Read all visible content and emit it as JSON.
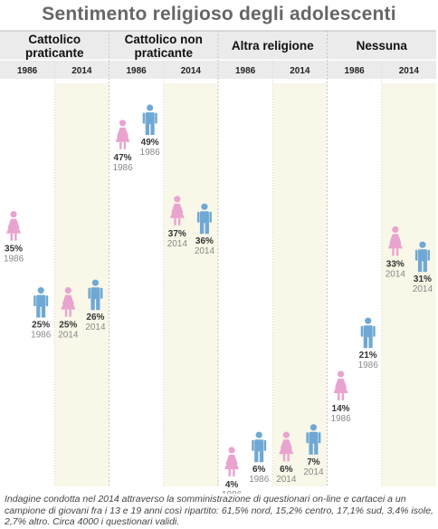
{
  "title": "Sentimento religioso degli adolescenti",
  "note": "Indagine condotta nel 2014 attraverso la somministrazione di questionari on-line e cartacei a un campione di giovani fra i 13 e 19 anni così ripartito: 61,5% nord, 15,2% centro, 17,1% sud, 3,4% isole, 2,7% altro. Circa 4000 i questionari validi.",
  "colors": {
    "female": "#e9a3cf",
    "male": "#6fa8d4",
    "header_bg": "#ebebeb",
    "column_shade": "#f8f7e8"
  },
  "chart_data": {
    "type": "scatter",
    "title": "Sentimento religioso degli adolescenti",
    "ylim": [
      0,
      52
    ],
    "groups": [
      {
        "name": "Cattolico praticante",
        "label_lines": [
          "Cattolico",
          "praticante"
        ],
        "years": [
          {
            "year": "1986",
            "female": 35,
            "male": 25
          },
          {
            "year": "2014",
            "female": 25,
            "male": 26
          }
        ]
      },
      {
        "name": "Cattolico non praticante",
        "label_lines": [
          "Cattolico non",
          "praticante"
        ],
        "years": [
          {
            "year": "1986",
            "female": 47,
            "male": 49
          },
          {
            "year": "2014",
            "female": 37,
            "male": 36
          }
        ]
      },
      {
        "name": "Altra religione",
        "label_lines": [
          "Altra religione"
        ],
        "years": [
          {
            "year": "1986",
            "female": 4,
            "male": 6
          },
          {
            "year": "2014",
            "female": 6,
            "male": 7
          }
        ]
      },
      {
        "name": "Nessuna",
        "label_lines": [
          "Nessuna"
        ],
        "years": [
          {
            "year": "1986",
            "female": 14,
            "male": 21
          },
          {
            "year": "2014",
            "female": 33,
            "male": 31
          }
        ]
      }
    ]
  }
}
